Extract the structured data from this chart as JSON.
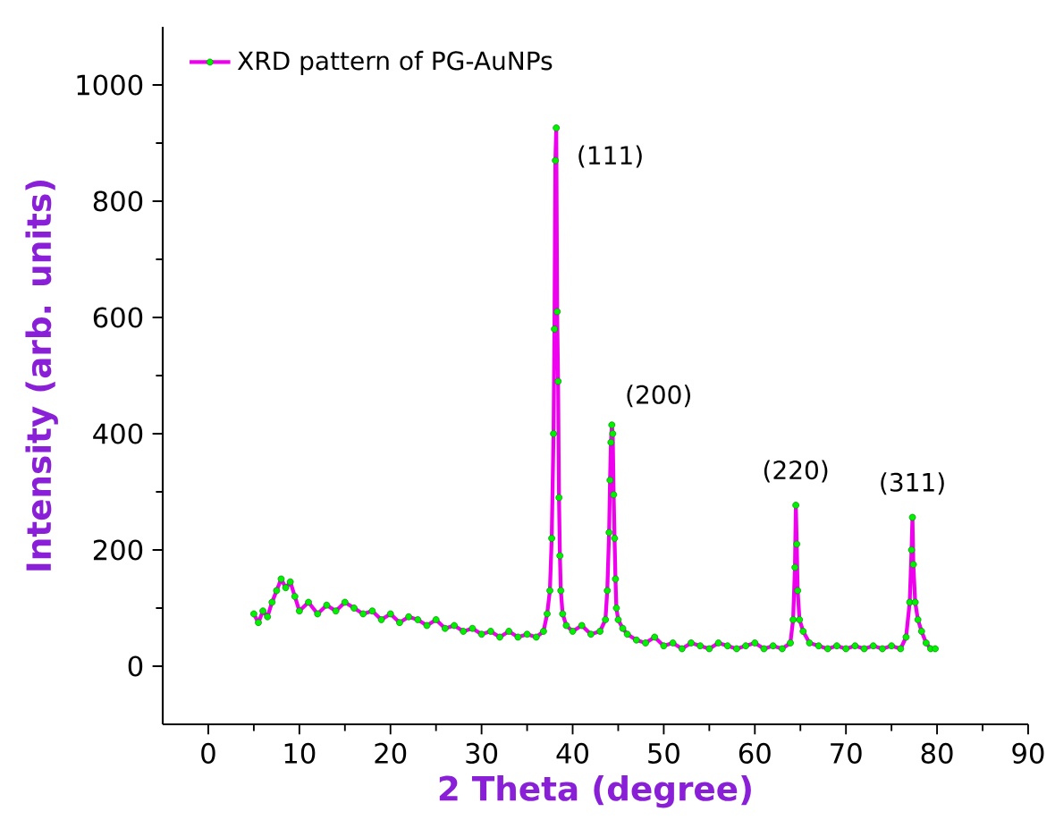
{
  "chart_data": {
    "type": "line",
    "xlabel": "2 Theta (degree)",
    "ylabel": "Intensity (arb. units)",
    "xlim": [
      -5,
      90
    ],
    "ylim": [
      -100,
      1100
    ],
    "xticks": [
      0,
      10,
      20,
      30,
      40,
      50,
      60,
      70,
      80,
      90
    ],
    "yticks": [
      0,
      200,
      400,
      600,
      800,
      1000
    ],
    "legend": "top left",
    "marker": "circle",
    "grid": false,
    "annotations": [
      {
        "text": "(111)",
        "x": 38.2,
        "y": 926
      },
      {
        "text": "(200)",
        "x": 44.3,
        "y": 415
      },
      {
        "text": "(220)",
        "x": 64.5,
        "y": 277
      },
      {
        "text": "(311)",
        "x": 77.3,
        "y": 256
      }
    ],
    "series": [
      {
        "name": "XRD pattern of PG-AuNPs",
        "color": "#ee00ee",
        "x": [
          5,
          5.5,
          6,
          6.5,
          7,
          7.5,
          8,
          8.5,
          9,
          9.5,
          10,
          11,
          12,
          13,
          14,
          15,
          16,
          17,
          18,
          19,
          20,
          21,
          22,
          23,
          24,
          25,
          26,
          27,
          28,
          29,
          30,
          31,
          32,
          33,
          34,
          35,
          36,
          36.8,
          37.2,
          37.5,
          37.7,
          37.9,
          38.0,
          38.1,
          38.2,
          38.3,
          38.4,
          38.5,
          38.6,
          38.7,
          38.9,
          39.3,
          40,
          41,
          42,
          43,
          43.6,
          43.8,
          44.0,
          44.1,
          44.2,
          44.3,
          44.4,
          44.5,
          44.6,
          44.7,
          44.8,
          45,
          45.5,
          46,
          47,
          48,
          49,
          50,
          51,
          52,
          53,
          54,
          55,
          56,
          57,
          58,
          59,
          60,
          61,
          62,
          63,
          63.9,
          64.2,
          64.4,
          64.5,
          64.6,
          64.7,
          64.9,
          65.3,
          66,
          67,
          68,
          69,
          70,
          71,
          72,
          73,
          74,
          75,
          76,
          76.6,
          77.0,
          77.2,
          77.3,
          77.4,
          77.6,
          77.9,
          78.3,
          78.8,
          79.3,
          79.8
        ],
        "values": [
          90,
          75,
          95,
          85,
          110,
          130,
          150,
          135,
          145,
          120,
          95,
          110,
          90,
          105,
          95,
          110,
          100,
          90,
          95,
          80,
          90,
          75,
          85,
          80,
          70,
          80,
          65,
          70,
          60,
          65,
          55,
          60,
          50,
          60,
          50,
          55,
          50,
          60,
          90,
          130,
          220,
          400,
          580,
          870,
          926,
          610,
          490,
          290,
          190,
          130,
          90,
          70,
          60,
          70,
          55,
          60,
          80,
          130,
          230,
          320,
          385,
          415,
          400,
          295,
          220,
          150,
          100,
          80,
          65,
          55,
          45,
          40,
          50,
          35,
          40,
          30,
          40,
          35,
          30,
          40,
          35,
          30,
          35,
          40,
          30,
          35,
          30,
          40,
          80,
          170,
          277,
          210,
          130,
          80,
          60,
          40,
          35,
          30,
          35,
          30,
          35,
          30,
          35,
          30,
          35,
          30,
          50,
          110,
          200,
          256,
          175,
          110,
          80,
          60,
          40,
          30,
          30
        ]
      }
    ]
  }
}
